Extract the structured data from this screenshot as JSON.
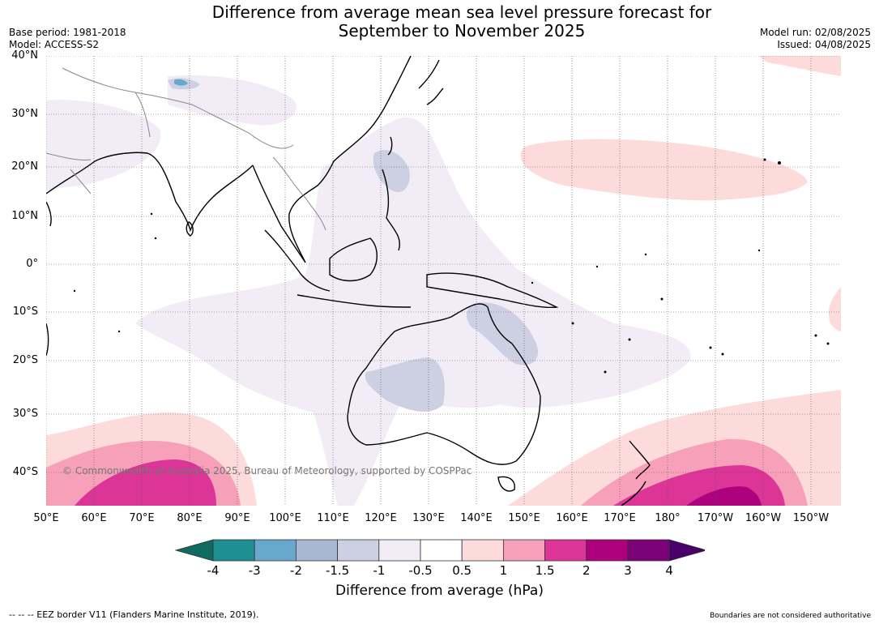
{
  "title_line1": "Difference from average mean sea level pressure forecast for",
  "title_line2": "September to November 2025",
  "base_period": "Base period: 1981-2018",
  "model": "Model: ACCESS-S2",
  "model_run": "Model run: 02/08/2025",
  "issued": "Issued: 04/08/2025",
  "lat_labels": [
    "40°N",
    "30°N",
    "20°N",
    "10°N",
    "0°",
    "10°S",
    "20°S",
    "30°S",
    "40°S"
  ],
  "lon_labels": [
    "50°E",
    "60°E",
    "70°E",
    "80°E",
    "90°E",
    "100°E",
    "110°E",
    "120°E",
    "130°E",
    "140°E",
    "150°E",
    "160°E",
    "170°E",
    "180°",
    "170°W",
    "160°W",
    "150°W"
  ],
  "copyright": "© Commonwealth of Australia 2025, Bureau of Meteorology, supported by COSPPac",
  "colorbar": {
    "ticks": [
      "-4",
      "-3",
      "-2",
      "-1.5",
      "-1",
      "-0.5",
      "0.5",
      "1",
      "1.5",
      "2",
      "3",
      "4"
    ],
    "colors": [
      "#0f6b5f",
      "#1e8f93",
      "#69a8ce",
      "#a9b7d3",
      "#cdcfe3",
      "#f1ecf5",
      "#ffffff",
      "#fddbdb",
      "#f7a0b9",
      "#dd3597",
      "#ae017e",
      "#7a0177",
      "#49006a"
    ],
    "label": "Difference from average (hPa)"
  },
  "footer_left": "--  --  -- EEZ border V11 (Flanders Marine Institute, 2019).",
  "footer_right": "Boundaries are not considered authoritative"
}
